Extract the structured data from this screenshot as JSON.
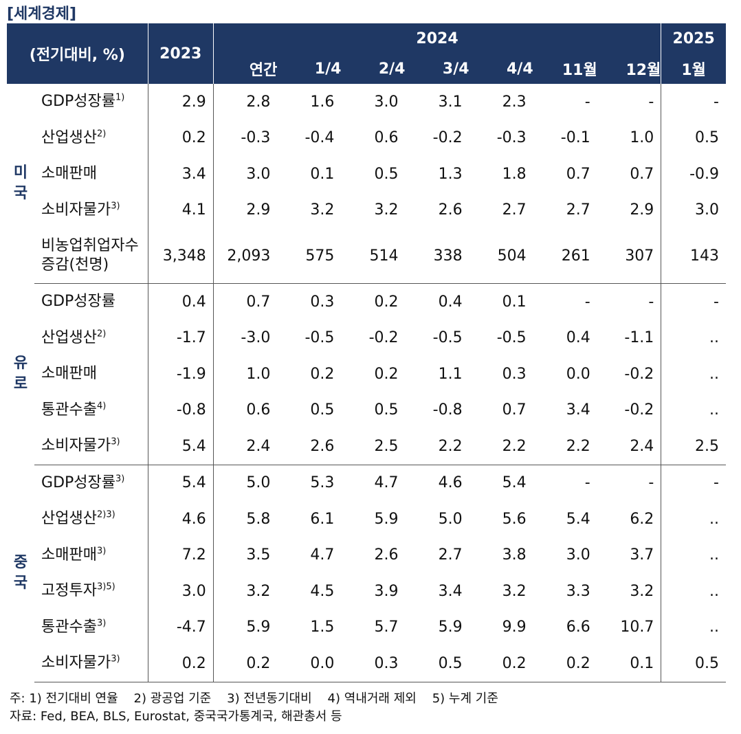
{
  "title": "[세계경제]",
  "header": {
    "unit_label": "(전기대비, %)",
    "col_2023": "2023",
    "col_2024": "2024",
    "col_2025": "2025",
    "sub_2024": [
      "연간",
      "1/4",
      "2/4",
      "3/4",
      "4/4",
      "11월",
      "12월"
    ],
    "sub_2025": "1월"
  },
  "groups": [
    {
      "region": [
        "미",
        "국"
      ],
      "rows": [
        {
          "label": "GDP성장률",
          "sup": "1)",
          "values": [
            "2.9",
            "2.8",
            "1.6",
            "3.0",
            "3.1",
            "2.3",
            "-",
            "-",
            "-"
          ]
        },
        {
          "label": "산업생산",
          "sup": "2)",
          "values": [
            "0.2",
            "-0.3",
            "-0.4",
            "0.6",
            "-0.2",
            "-0.3",
            "-0.1",
            "1.0",
            "0.5"
          ]
        },
        {
          "label": "소매판매",
          "sup": "",
          "values": [
            "3.4",
            "3.0",
            "0.1",
            "0.5",
            "1.3",
            "1.8",
            "0.7",
            "0.7",
            "-0.9"
          ]
        },
        {
          "label": "소비자물가",
          "sup": "3)",
          "values": [
            "4.1",
            "2.9",
            "3.2",
            "3.2",
            "2.6",
            "2.7",
            "2.7",
            "2.9",
            "3.0"
          ]
        },
        {
          "label": "비농업취업자수",
          "label2": "증감(천명)",
          "sup": "",
          "values": [
            "3,348",
            "2,093",
            "575",
            "514",
            "338",
            "504",
            "261",
            "307",
            "143"
          ]
        }
      ]
    },
    {
      "region": [
        "유",
        "로"
      ],
      "rows": [
        {
          "label": "GDP성장률",
          "sup": "",
          "values": [
            "0.4",
            "0.7",
            "0.3",
            "0.2",
            "0.4",
            "0.1",
            "-",
            "-",
            "-"
          ]
        },
        {
          "label": "산업생산",
          "sup": "2)",
          "values": [
            "-1.7",
            "-3.0",
            "-0.5",
            "-0.2",
            "-0.5",
            "-0.5",
            "0.4",
            "-1.1",
            ".."
          ]
        },
        {
          "label": "소매판매",
          "sup": "",
          "values": [
            "-1.9",
            "1.0",
            "0.2",
            "0.2",
            "1.1",
            "0.3",
            "0.0",
            "-0.2",
            ".."
          ]
        },
        {
          "label": "통관수출",
          "sup": "4)",
          "values": [
            "-0.8",
            "0.6",
            "0.5",
            "0.5",
            "-0.8",
            "0.7",
            "3.4",
            "-0.2",
            ".."
          ]
        },
        {
          "label": "소비자물가",
          "sup": "3)",
          "values": [
            "5.4",
            "2.4",
            "2.6",
            "2.5",
            "2.2",
            "2.2",
            "2.2",
            "2.4",
            "2.5"
          ]
        }
      ]
    },
    {
      "region": [
        "중",
        "국"
      ],
      "rows": [
        {
          "label": "GDP성장률",
          "sup": "3)",
          "values": [
            "5.4",
            "5.0",
            "5.3",
            "4.7",
            "4.6",
            "5.4",
            "-",
            "-",
            "-"
          ]
        },
        {
          "label": "산업생산",
          "sup": "2)3)",
          "values": [
            "4.6",
            "5.8",
            "6.1",
            "5.9",
            "5.0",
            "5.6",
            "5.4",
            "6.2",
            ".."
          ]
        },
        {
          "label": "소매판매",
          "sup": "3)",
          "values": [
            "7.2",
            "3.5",
            "4.7",
            "2.6",
            "2.7",
            "3.8",
            "3.0",
            "3.7",
            ".."
          ]
        },
        {
          "label": "고정투자",
          "sup": "3)5)",
          "values": [
            "3.0",
            "3.2",
            "4.5",
            "3.9",
            "3.4",
            "3.2",
            "3.3",
            "3.2",
            ".."
          ]
        },
        {
          "label": "통관수출",
          "sup": "3)",
          "values": [
            "-4.7",
            "5.9",
            "1.5",
            "5.7",
            "5.9",
            "9.9",
            "6.6",
            "10.7",
            ".."
          ]
        },
        {
          "label": "소비자물가",
          "sup": "3)",
          "values": [
            "0.2",
            "0.2",
            "0.0",
            "0.3",
            "0.5",
            "0.2",
            "0.2",
            "0.1",
            "0.5"
          ]
        }
      ]
    }
  ],
  "notes": {
    "line1": "주: 1) 전기대비 연율    2) 광공업 기준    3) 전년동기대비    4) 역내거래 제외    5) 누계 기준",
    "line2": "자료: Fed, BEA, BLS, Eurostat, 중국국가통계국, 해관총서 등"
  }
}
